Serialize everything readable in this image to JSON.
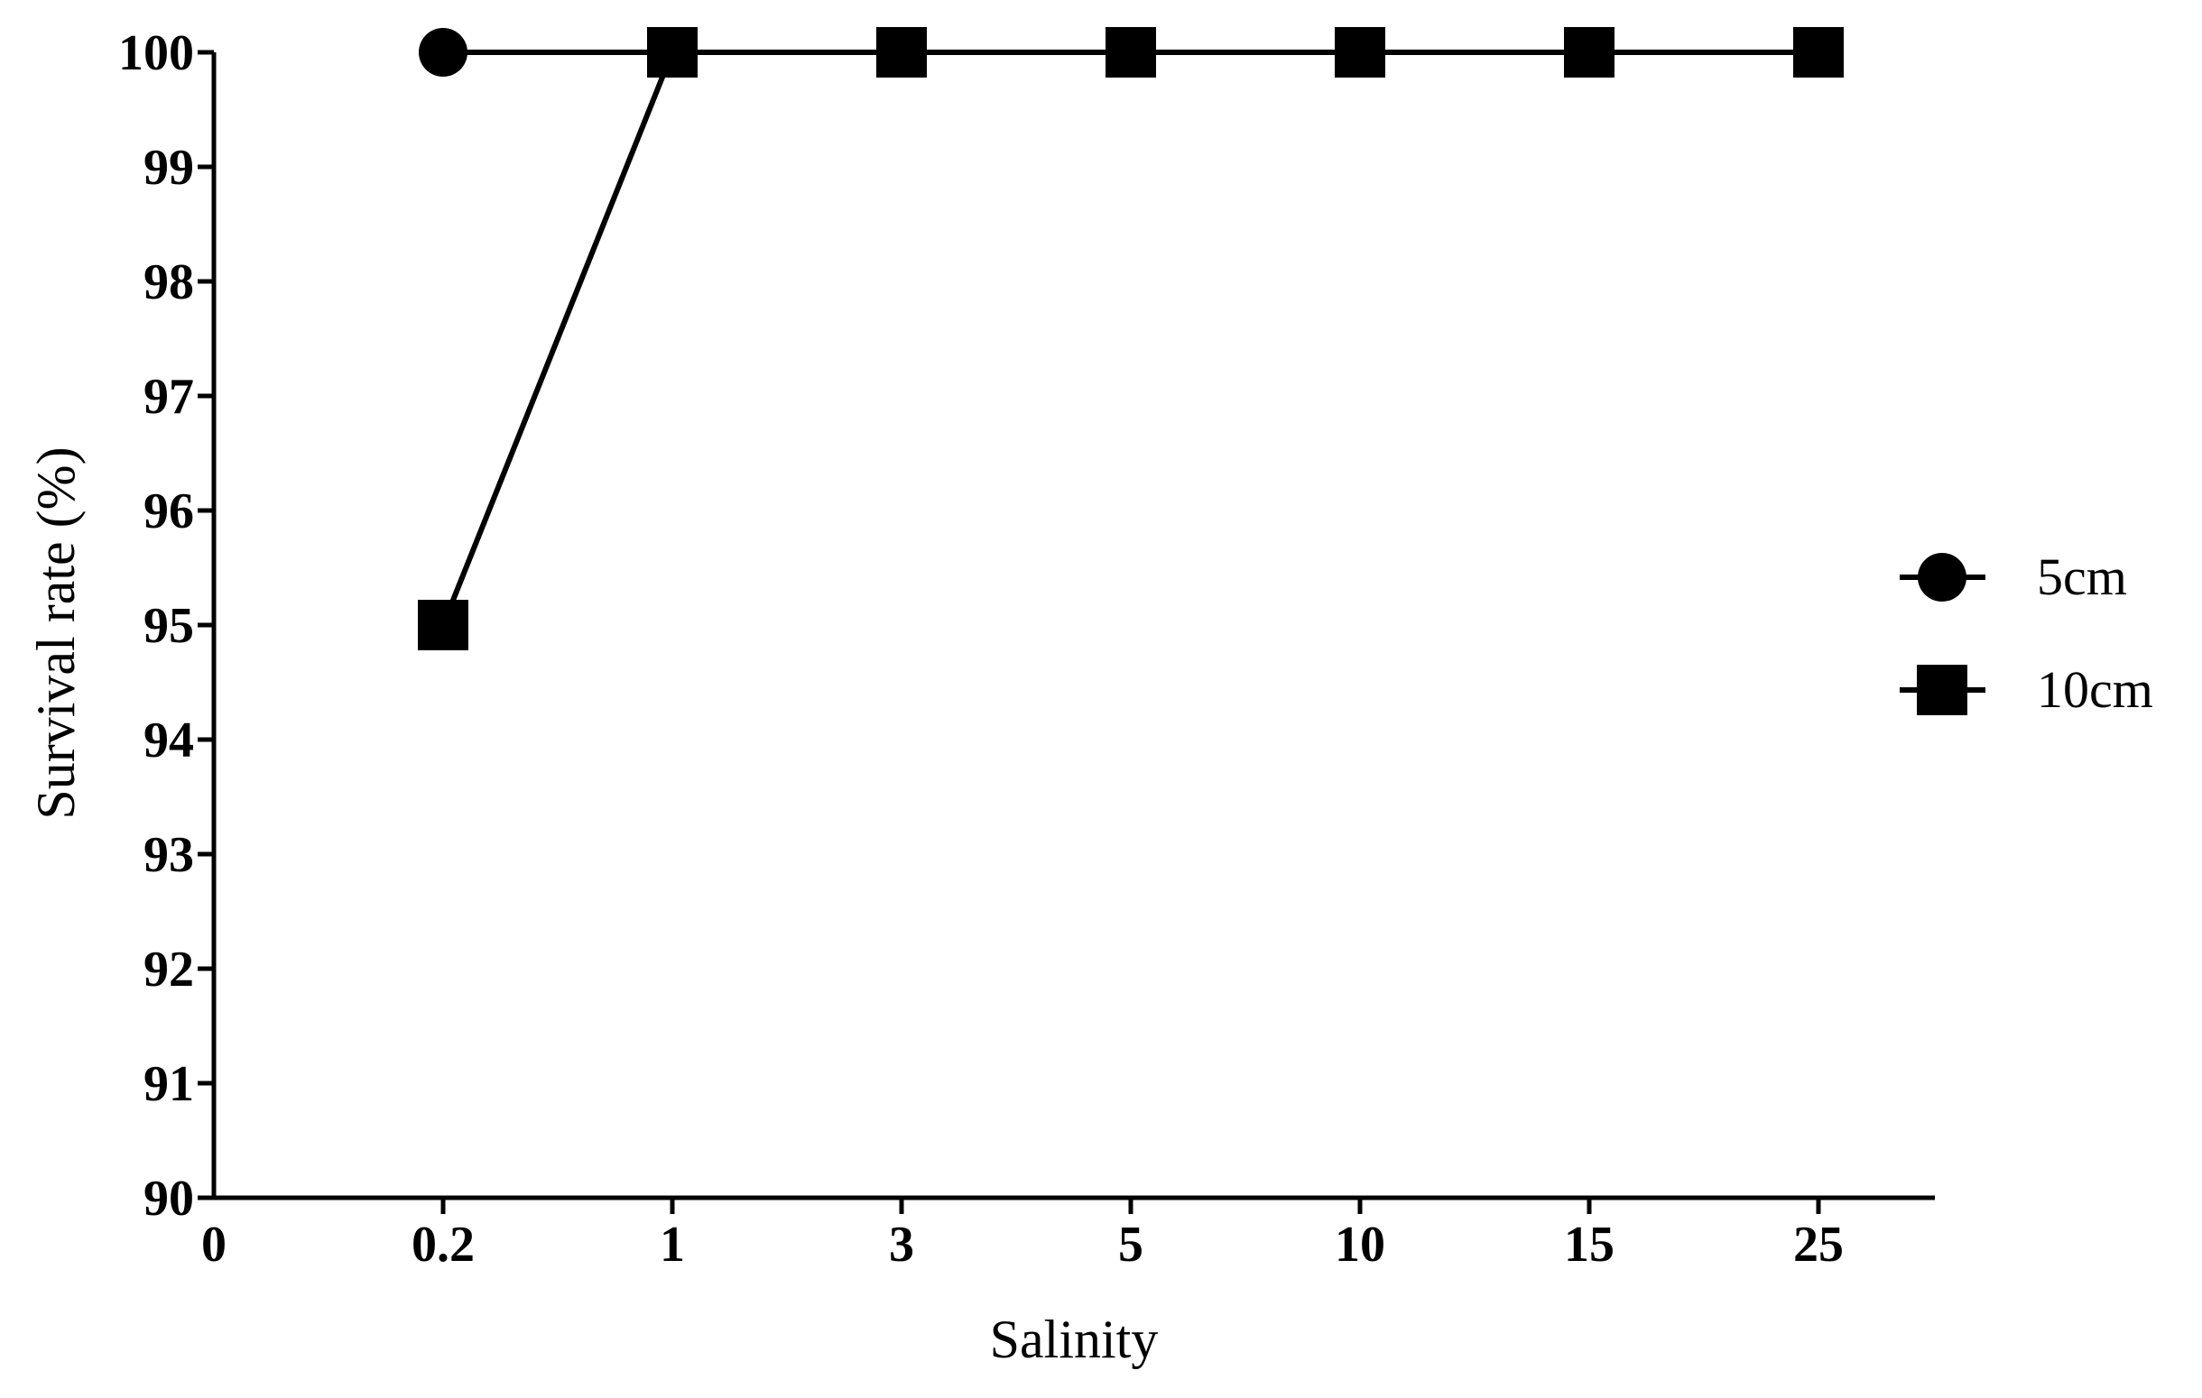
{
  "chart_data": {
    "type": "line",
    "title": "",
    "xlabel": "Salinity",
    "ylabel": "Survival rate (%)",
    "x_origin_label": "0",
    "categories": [
      "0.2",
      "1",
      "3",
      "5",
      "10",
      "15",
      "25"
    ],
    "ylim": [
      90,
      100
    ],
    "yticks": [
      "90",
      "91",
      "92",
      "93",
      "94",
      "95",
      "96",
      "97",
      "98",
      "99",
      "100"
    ],
    "grid": false,
    "legend_position": "right",
    "series": [
      {
        "name": "5cm",
        "marker": "circle",
        "color": "#000000",
        "values": [
          100,
          100,
          100,
          100,
          100,
          100,
          100
        ]
      },
      {
        "name": "10cm",
        "marker": "square",
        "color": "#000000",
        "values": [
          95,
          100,
          100,
          100,
          100,
          100,
          100
        ]
      }
    ]
  }
}
